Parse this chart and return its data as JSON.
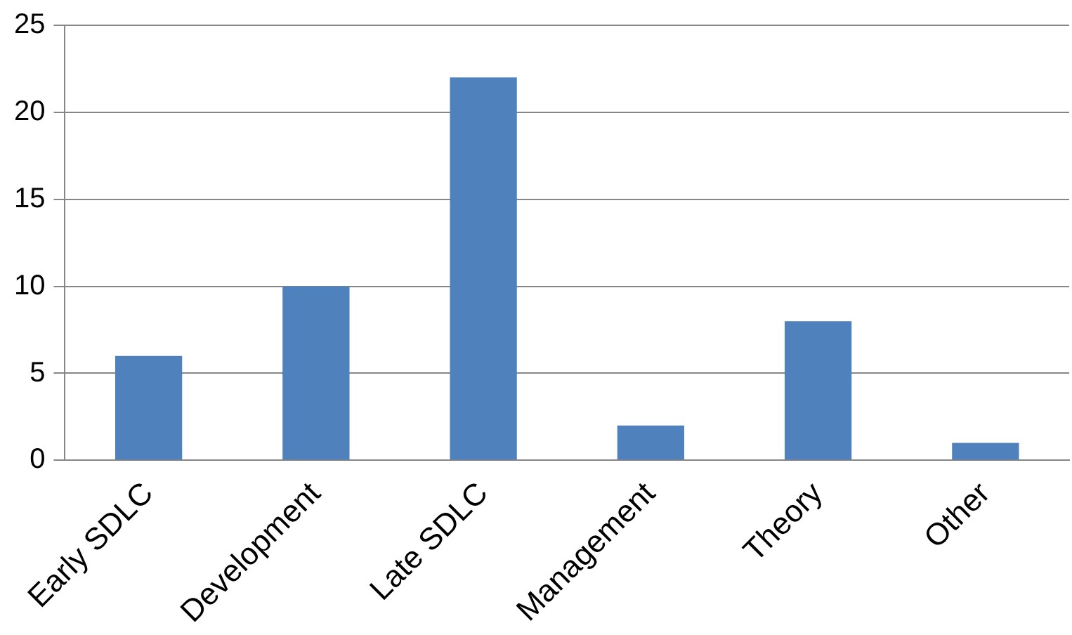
{
  "chart_data": {
    "type": "bar",
    "categories": [
      "Early SDLC",
      "Development",
      "Late SDLC",
      "Management",
      "Theory",
      "Other"
    ],
    "values": [
      6,
      10,
      22,
      2,
      8,
      1
    ],
    "color": "#4f81bd",
    "ylim": [
      0,
      25
    ],
    "yticks": [
      0,
      5,
      10,
      15,
      20,
      25
    ],
    "grid": "y",
    "legend": false
  }
}
